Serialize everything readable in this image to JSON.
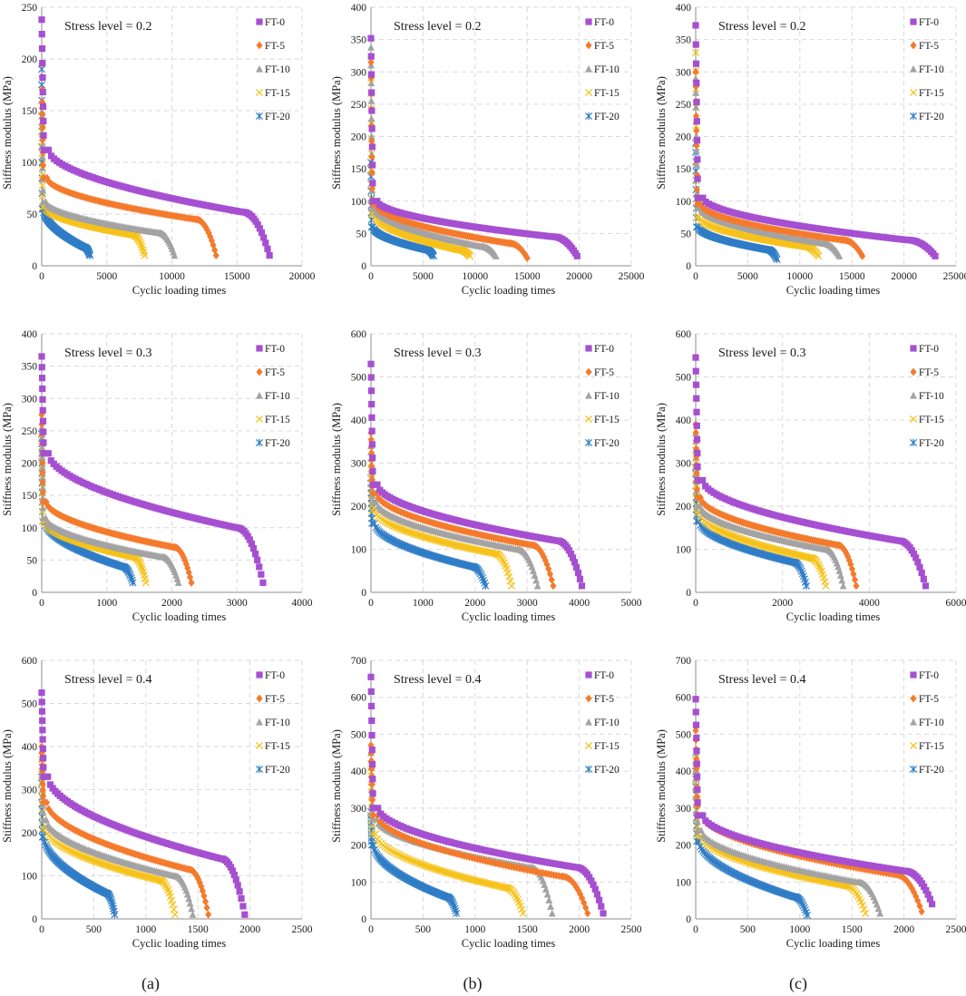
{
  "colors": {
    "FT-0": "#a64fd1",
    "FT-5": "#f47a2c",
    "FT-10": "#a3a3a3",
    "FT-15": "#f6c21a",
    "FT-20": "#2f7dc6",
    "grid": "#d9d9d9",
    "axis": "#8c8c8c"
  },
  "legend": [
    {
      "name": "FT-0",
      "marker": "square"
    },
    {
      "name": "FT-5",
      "marker": "diamond"
    },
    {
      "name": "FT-10",
      "marker": "triangle"
    },
    {
      "name": "FT-15",
      "marker": "x"
    },
    {
      "name": "FT-20",
      "marker": "star"
    }
  ],
  "captions": [
    "(a)",
    "(b)",
    "(c)"
  ],
  "chart_data": [
    {
      "type": "scatter",
      "column": "(a)",
      "title": "Stress level = 0.2",
      "xlabel": "Cyclic  loading times",
      "ylabel": "Stiffness modulus (MPa)",
      "xlim": [
        0,
        20000
      ],
      "xticks": [
        0,
        5000,
        10000,
        15000,
        20000
      ],
      "ylim": [
        0,
        250
      ],
      "yticks": [
        0,
        50,
        100,
        150,
        200,
        250
      ],
      "series": [
        {
          "name": "FT-0",
          "start": 238,
          "knee": 112,
          "plateau": 52,
          "end_n": 17500,
          "final": 10
        },
        {
          "name": "FT-5",
          "start": 195,
          "knee": 85,
          "plateau": 45,
          "end_n": 13400,
          "final": 10
        },
        {
          "name": "FT-10",
          "start": 160,
          "knee": 62,
          "plateau": 32,
          "end_n": 10200,
          "final": 10
        },
        {
          "name": "FT-15",
          "start": 150,
          "knee": 57,
          "plateau": 30,
          "end_n": 7900,
          "final": 10
        },
        {
          "name": "FT-20",
          "start": 190,
          "knee": 55,
          "plateau": 18,
          "end_n": 3700,
          "final": 10
        }
      ]
    },
    {
      "type": "scatter",
      "column": "(b)",
      "title": "Stress level = 0.2",
      "xlabel": "Cyclic  loading times",
      "ylabel": "Stiffness modulus (MPa)",
      "xlim": [
        0,
        25000
      ],
      "xticks": [
        0,
        5000,
        10000,
        15000,
        20000,
        25000
      ],
      "ylim": [
        0,
        400
      ],
      "yticks": [
        0,
        50,
        100,
        150,
        200,
        250,
        300,
        350,
        400
      ],
      "series": [
        {
          "name": "FT-0",
          "start": 352,
          "knee": 100,
          "plateau": 45,
          "end_n": 19800,
          "final": 15
        },
        {
          "name": "FT-5",
          "start": 315,
          "knee": 95,
          "plateau": 35,
          "end_n": 15000,
          "final": 12
        },
        {
          "name": "FT-10",
          "start": 338,
          "knee": 90,
          "plateau": 30,
          "end_n": 12000,
          "final": 15
        },
        {
          "name": "FT-15",
          "start": 290,
          "knee": 80,
          "plateau": 25,
          "end_n": 9500,
          "final": 15
        },
        {
          "name": "FT-20",
          "start": 160,
          "knee": 60,
          "plateau": 25,
          "end_n": 6000,
          "final": 15
        }
      ]
    },
    {
      "type": "scatter",
      "column": "(c)",
      "title": "Stress level = 0.2",
      "xlabel": "Cyclic  loading times",
      "ylabel": "Stiffness modulus (MPa)",
      "xlim": [
        0,
        25000
      ],
      "xticks": [
        0,
        5000,
        10000,
        15000,
        20000,
        25000
      ],
      "ylim": [
        0,
        400
      ],
      "yticks": [
        0,
        50,
        100,
        150,
        200,
        250,
        300,
        350,
        400
      ],
      "series": [
        {
          "name": "FT-0",
          "start": 372,
          "knee": 105,
          "plateau": 40,
          "end_n": 23000,
          "final": 15
        },
        {
          "name": "FT-5",
          "start": 300,
          "knee": 95,
          "plateau": 40,
          "end_n": 16000,
          "final": 15
        },
        {
          "name": "FT-10",
          "start": 290,
          "knee": 90,
          "plateau": 35,
          "end_n": 13800,
          "final": 15
        },
        {
          "name": "FT-15",
          "start": 330,
          "knee": 75,
          "plateau": 30,
          "end_n": 11800,
          "final": 15
        },
        {
          "name": "FT-20",
          "start": 190,
          "knee": 60,
          "plateau": 25,
          "end_n": 7800,
          "final": 10
        }
      ]
    },
    {
      "type": "scatter",
      "column": "(a)",
      "title": "Stress level = 0.3",
      "xlabel": "Cyclic  loading times",
      "ylabel": "Stiffness modulus (MPa)",
      "xlim": [
        0,
        4000
      ],
      "xticks": [
        0,
        1000,
        2000,
        3000,
        4000
      ],
      "ylim": [
        0,
        400
      ],
      "yticks": [
        0,
        50,
        100,
        150,
        200,
        250,
        300,
        350,
        400
      ],
      "series": [
        {
          "name": "FT-0",
          "start": 365,
          "knee": 215,
          "plateau": 100,
          "end_n": 3400,
          "final": 15
        },
        {
          "name": "FT-5",
          "start": 275,
          "knee": 140,
          "plateau": 70,
          "end_n": 2300,
          "final": 15
        },
        {
          "name": "FT-10",
          "start": 255,
          "knee": 115,
          "plateau": 55,
          "end_n": 2100,
          "final": 15
        },
        {
          "name": "FT-15",
          "start": 240,
          "knee": 110,
          "plateau": 55,
          "end_n": 1600,
          "final": 15
        },
        {
          "name": "FT-20",
          "start": 245,
          "knee": 110,
          "plateau": 40,
          "end_n": 1400,
          "final": 15
        }
      ]
    },
    {
      "type": "scatter",
      "column": "(b)",
      "title": "Stress level = 0.3",
      "xlabel": "Cyclic  loading times",
      "ylabel": "Stiffness modulus (MPa)",
      "xlim": [
        0,
        5000
      ],
      "xticks": [
        0,
        1000,
        2000,
        3000,
        4000,
        5000
      ],
      "ylim": [
        0,
        600
      ],
      "yticks": [
        0,
        100,
        200,
        300,
        400,
        500,
        600
      ],
      "series": [
        {
          "name": "FT-0",
          "start": 530,
          "knee": 250,
          "plateau": 120,
          "end_n": 4050,
          "final": 15
        },
        {
          "name": "FT-5",
          "start": 370,
          "knee": 230,
          "plateau": 110,
          "end_n": 3500,
          "final": 15
        },
        {
          "name": "FT-10",
          "start": 340,
          "knee": 210,
          "plateau": 100,
          "end_n": 3200,
          "final": 15
        },
        {
          "name": "FT-15",
          "start": 300,
          "knee": 190,
          "plateau": 90,
          "end_n": 2700,
          "final": 15
        },
        {
          "name": "FT-20",
          "start": 265,
          "knee": 160,
          "plateau": 60,
          "end_n": 2200,
          "final": 15
        }
      ]
    },
    {
      "type": "scatter",
      "column": "(c)",
      "title": "Stress level = 0.3",
      "xlabel": "Cyclic  loading times",
      "ylabel": "Stiffness modulus (MPa)",
      "xlim": [
        0,
        6000
      ],
      "xticks": [
        0,
        2000,
        4000,
        6000
      ],
      "ylim": [
        0,
        600
      ],
      "yticks": [
        0,
        100,
        200,
        300,
        400,
        500,
        600
      ],
      "series": [
        {
          "name": "FT-0",
          "start": 545,
          "knee": 260,
          "plateau": 120,
          "end_n": 5300,
          "final": 15
        },
        {
          "name": "FT-5",
          "start": 390,
          "knee": 220,
          "plateau": 110,
          "end_n": 3700,
          "final": 15
        },
        {
          "name": "FT-10",
          "start": 370,
          "knee": 200,
          "plateau": 100,
          "end_n": 3400,
          "final": 15
        },
        {
          "name": "FT-15",
          "start": 330,
          "knee": 185,
          "plateau": 80,
          "end_n": 3000,
          "final": 15
        },
        {
          "name": "FT-20",
          "start": 290,
          "knee": 165,
          "plateau": 70,
          "end_n": 2550,
          "final": 15
        }
      ]
    },
    {
      "type": "scatter",
      "column": "(a)",
      "title": "Stress level = 0.4",
      "xlabel": "Cyclic  loading times",
      "ylabel": "Stiffness modulus (MPa)",
      "xlim": [
        0,
        2500
      ],
      "xticks": [
        0,
        500,
        1000,
        1500,
        2000,
        2500
      ],
      "ylim": [
        0,
        600
      ],
      "yticks": [
        0,
        100,
        200,
        300,
        400,
        500,
        600
      ],
      "series": [
        {
          "name": "FT-0",
          "start": 525,
          "knee": 330,
          "plateau": 140,
          "end_n": 1950,
          "final": 10
        },
        {
          "name": "FT-5",
          "start": 400,
          "knee": 270,
          "plateau": 115,
          "end_n": 1600,
          "final": 10
        },
        {
          "name": "FT-10",
          "start": 390,
          "knee": 230,
          "plateau": 100,
          "end_n": 1450,
          "final": 10
        },
        {
          "name": "FT-15",
          "start": 370,
          "knee": 210,
          "plateau": 90,
          "end_n": 1280,
          "final": 10
        },
        {
          "name": "FT-20",
          "start": 330,
          "knee": 190,
          "plateau": 60,
          "end_n": 700,
          "final": 10
        }
      ]
    },
    {
      "type": "scatter",
      "column": "(b)",
      "title": "Stress level = 0.4",
      "xlabel": "Cyclic  loading times",
      "ylabel": "Stiffness modulus (MPa)",
      "xlim": [
        0,
        2500
      ],
      "xticks": [
        0,
        500,
        1000,
        1500,
        2000,
        2500
      ],
      "ylim": [
        0,
        700
      ],
      "yticks": [
        0,
        100,
        200,
        300,
        400,
        500,
        600,
        700
      ],
      "series": [
        {
          "name": "FT-0",
          "start": 655,
          "knee": 300,
          "plateau": 140,
          "end_n": 2230,
          "final": 15
        },
        {
          "name": "FT-5",
          "start": 470,
          "knee": 280,
          "plateau": 115,
          "end_n": 2080,
          "final": 15
        },
        {
          "name": "FT-10",
          "start": 450,
          "knee": 270,
          "plateau": 140,
          "end_n": 1740,
          "final": 15
        },
        {
          "name": "FT-15",
          "start": 420,
          "knee": 230,
          "plateau": 85,
          "end_n": 1460,
          "final": 15
        },
        {
          "name": "FT-20",
          "start": 290,
          "knee": 200,
          "plateau": 60,
          "end_n": 820,
          "final": 15
        }
      ]
    },
    {
      "type": "scatter",
      "column": "(c)",
      "title": "Stress level = 0.4",
      "xlabel": "Cyclic  loading times",
      "ylabel": "Stiffness modulus (MPa)",
      "xlim": [
        0,
        2500
      ],
      "xticks": [
        0,
        500,
        1000,
        1500,
        2000,
        2500
      ],
      "ylim": [
        0,
        700
      ],
      "yticks": [
        0,
        100,
        200,
        300,
        400,
        500,
        600,
        700
      ],
      "series": [
        {
          "name": "FT-0",
          "start": 595,
          "knee": 280,
          "plateau": 130,
          "end_n": 2270,
          "final": 40
        },
        {
          "name": "FT-5",
          "start": 510,
          "knee": 280,
          "plateau": 120,
          "end_n": 2170,
          "final": 20
        },
        {
          "name": "FT-10",
          "start": 450,
          "knee": 240,
          "plateau": 100,
          "end_n": 1770,
          "final": 15
        },
        {
          "name": "FT-15",
          "start": 430,
          "knee": 225,
          "plateau": 90,
          "end_n": 1630,
          "final": 15
        },
        {
          "name": "FT-20",
          "start": 400,
          "knee": 210,
          "plateau": 60,
          "end_n": 1070,
          "final": 10
        }
      ]
    }
  ]
}
